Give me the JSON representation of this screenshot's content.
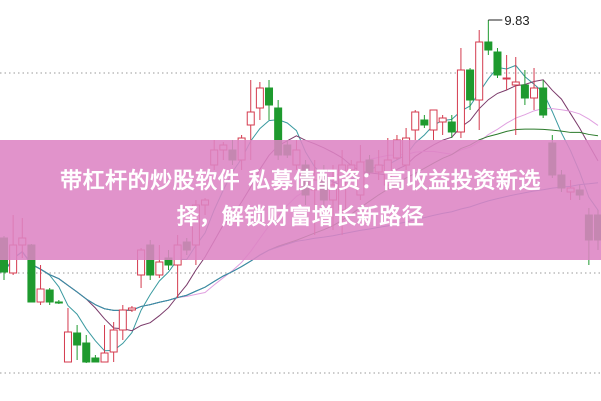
{
  "banner": {
    "line1": "带杠杆的炒股软件 私募债配资：高收益投资新选",
    "line2": "择，解锁财富增长新路径",
    "color": "#dd84c4"
  },
  "chart_data": {
    "type": "candlestick",
    "title": "",
    "ylim": [
      6.02,
      10.03
    ],
    "grid": "horizontal-dotted",
    "gridlines": [
      9.3,
      7.3,
      6.3
    ],
    "max_label": "9.83",
    "colors": {
      "up": "#d43a4e",
      "down": "#1e9a2e",
      "ma5": "#3a9aa0",
      "ma10": "#7a3a6a",
      "ma20": "#e0a0e0",
      "ma30": "#2a7a2a",
      "ma60": "#3a8ab0"
    },
    "candles": [
      [
        7.65,
        7.67,
        7.23,
        7.31
      ],
      [
        7.3,
        7.88,
        7.28,
        7.58
      ],
      [
        7.58,
        7.85,
        7.45,
        7.65
      ],
      [
        7.58,
        7.59,
        7.01,
        7.01
      ],
      [
        7.01,
        7.38,
        6.98,
        7.14
      ],
      [
        7.13,
        7.15,
        6.98,
        7.01
      ],
      [
        7.01,
        7.03,
        6.99,
        7.0
      ],
      [
        6.41,
        6.95,
        6.41,
        6.71
      ],
      [
        6.7,
        6.78,
        6.43,
        6.58
      ],
      [
        6.6,
        6.68,
        6.4,
        6.41
      ],
      [
        6.45,
        6.48,
        6.41,
        6.41
      ],
      [
        6.41,
        6.78,
        6.41,
        6.5
      ],
      [
        6.51,
        6.81,
        6.41,
        6.73
      ],
      [
        6.73,
        6.98,
        6.63,
        6.93
      ],
      [
        6.93,
        6.97,
        6.91,
        6.95
      ],
      [
        7.28,
        7.55,
        7.15,
        7.53
      ],
      [
        7.58,
        7.63,
        7.23,
        7.28
      ],
      [
        7.28,
        7.58,
        7.25,
        7.41
      ],
      [
        7.45,
        7.53,
        7.33,
        7.38
      ],
      [
        7.38,
        7.68,
        7.05,
        7.58
      ],
      [
        7.61,
        7.65,
        7.48,
        7.53
      ],
      [
        7.58,
        8.03,
        7.38,
        7.98
      ],
      [
        7.98,
        8.05,
        7.88,
        8.03
      ],
      [
        8.38,
        8.63,
        8.33,
        8.53
      ],
      [
        8.53,
        8.61,
        8.43,
        8.58
      ],
      [
        8.53,
        8.63,
        8.38,
        8.43
      ],
      [
        8.43,
        8.68,
        8.33,
        8.65
      ],
      [
        8.78,
        9.23,
        8.43,
        8.91
      ],
      [
        8.95,
        9.21,
        8.83,
        9.15
      ],
      [
        9.15,
        9.23,
        8.83,
        8.98
      ],
      [
        8.95,
        9.03,
        8.43,
        8.48
      ],
      [
        8.58,
        8.63,
        8.45,
        8.48
      ],
      [
        8.38,
        8.63,
        8.33,
        8.53
      ],
      [
        8.38,
        8.43,
        7.98,
        8.08
      ],
      [
        8.13,
        8.43,
        7.68,
        8.23
      ],
      [
        8.23,
        8.38,
        7.93,
        8.03
      ],
      [
        8.03,
        8.38,
        7.73,
        8.18
      ],
      [
        7.93,
        8.53,
        7.68,
        8.38
      ],
      [
        8.33,
        8.43,
        8.31,
        8.38
      ],
      [
        8.08,
        8.58,
        8.03,
        8.41
      ],
      [
        8.43,
        8.48,
        8.28,
        8.31
      ],
      [
        8.31,
        8.53,
        8.23,
        8.38
      ],
      [
        8.18,
        8.65,
        8.13,
        8.43
      ],
      [
        8.45,
        8.68,
        8.43,
        8.63
      ],
      [
        8.38,
        8.75,
        8.33,
        8.65
      ],
      [
        8.73,
        8.93,
        8.63,
        8.91
      ],
      [
        8.83,
        8.88,
        8.75,
        8.78
      ],
      [
        8.73,
        8.93,
        8.63,
        8.93
      ],
      [
        8.81,
        8.88,
        8.68,
        8.85
      ],
      [
        8.81,
        8.88,
        8.65,
        8.71
      ],
      [
        8.71,
        9.55,
        8.65,
        9.33
      ],
      [
        9.33,
        9.35,
        8.93,
        9.03
      ],
      [
        9.03,
        9.73,
        8.73,
        9.61
      ],
      [
        9.61,
        9.83,
        9.48,
        9.53
      ],
      [
        9.51,
        9.55,
        9.25,
        9.28
      ],
      [
        9.25,
        9.48,
        9.13,
        9.25
      ],
      [
        9.18,
        9.46,
        8.68,
        9.21
      ],
      [
        9.18,
        9.33,
        8.98,
        9.05
      ],
      [
        9.05,
        9.35,
        8.93,
        9.15
      ],
      [
        9.15,
        9.23,
        8.85,
        8.88
      ],
      [
        8.6,
        8.68,
        8.25,
        8.28
      ],
      [
        8.28,
        8.33,
        8.11,
        8.15
      ],
      [
        8.11,
        8.23,
        8.03,
        8.15
      ],
      [
        8.13,
        8.18,
        8.03,
        8.08
      ],
      [
        7.88,
        7.95,
        7.38,
        7.63
      ],
      [
        7.88,
        7.93,
        7.53,
        7.63
      ]
    ]
  }
}
